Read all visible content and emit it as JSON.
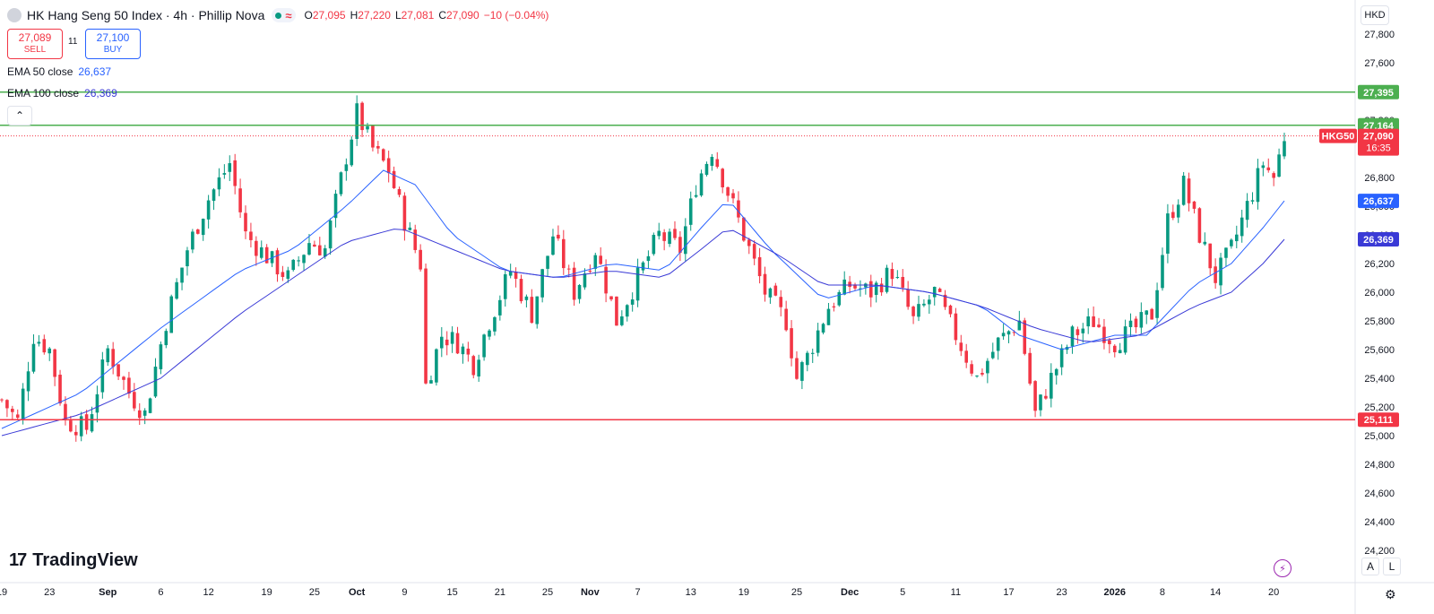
{
  "header": {
    "title": "HK Hang Seng 50 Index · 4h · Phillip Nova",
    "ohlc": {
      "o": "27,095",
      "h": "27,220",
      "l": "27,081",
      "c": "27,090",
      "change": "−10 (−0.04%)"
    }
  },
  "trade": {
    "sell_price": "27,089",
    "sell_label": "SELL",
    "spread": "11",
    "buy_price": "27,100",
    "buy_label": "BUY"
  },
  "indicators": [
    {
      "name": "EMA 50 close",
      "value": "26,637",
      "color": "#2962ff"
    },
    {
      "name": "EMA 100 close",
      "value": "26,369",
      "color": "#3a3ad6"
    }
  ],
  "currency": "HKD",
  "brand": "TradingView",
  "scale_buttons": [
    "A",
    "L"
  ],
  "chart_data": {
    "type": "candlestick",
    "symbol": "HKG50",
    "ylim": [
      24200,
      27950
    ],
    "y_ticks": [
      24200,
      24400,
      24600,
      24800,
      25000,
      25200,
      25400,
      25600,
      25800,
      26000,
      26200,
      26400,
      26600,
      26800,
      27000,
      27200,
      27400,
      27600,
      27800
    ],
    "x_ticks": [
      "19",
      "23",
      "Sep",
      "6",
      "12",
      "19",
      "25",
      "Oct",
      "9",
      "15",
      "21",
      "25",
      "Nov",
      "7",
      "13",
      "19",
      "25",
      "Dec",
      "5",
      "11",
      "17",
      "23",
      "2026",
      "8",
      "14",
      "20"
    ],
    "price_path": [
      [
        0,
        25250
      ],
      [
        3,
        25100
      ],
      [
        6,
        25700
      ],
      [
        9,
        25600
      ],
      [
        12,
        25100
      ],
      [
        16,
        25050
      ],
      [
        20,
        25600
      ],
      [
        24,
        25300
      ],
      [
        27,
        25150
      ],
      [
        31,
        25800
      ],
      [
        35,
        26300
      ],
      [
        39,
        26650
      ],
      [
        43,
        26900
      ],
      [
        46,
        26400
      ],
      [
        50,
        26250
      ],
      [
        54,
        26100
      ],
      [
        58,
        26350
      ],
      [
        61,
        26300
      ],
      [
        65,
        26950
      ],
      [
        67,
        27250
      ],
      [
        70,
        27000
      ],
      [
        73,
        26850
      ],
      [
        76,
        26500
      ],
      [
        79,
        26200
      ],
      [
        80,
        25350
      ],
      [
        83,
        25700
      ],
      [
        86,
        25650
      ],
      [
        89,
        25500
      ],
      [
        92,
        25800
      ],
      [
        96,
        26150
      ],
      [
        100,
        25850
      ],
      [
        104,
        26400
      ],
      [
        108,
        26000
      ],
      [
        112,
        26300
      ],
      [
        116,
        25800
      ],
      [
        120,
        26100
      ],
      [
        124,
        26400
      ],
      [
        128,
        26300
      ],
      [
        131,
        26750
      ],
      [
        134,
        27000
      ],
      [
        136,
        26800
      ],
      [
        140,
        26400
      ],
      [
        144,
        26000
      ],
      [
        148,
        25800
      ],
      [
        150,
        25400
      ],
      [
        152,
        25550
      ],
      [
        156,
        25900
      ],
      [
        160,
        26050
      ],
      [
        164,
        26000
      ],
      [
        168,
        26150
      ],
      [
        172,
        25800
      ],
      [
        176,
        26000
      ],
      [
        180,
        25700
      ],
      [
        184,
        25400
      ],
      [
        188,
        25650
      ],
      [
        192,
        25800
      ],
      [
        195,
        25150
      ],
      [
        198,
        25400
      ],
      [
        202,
        25700
      ],
      [
        206,
        25800
      ],
      [
        210,
        25650
      ],
      [
        214,
        25750
      ],
      [
        217,
        25850
      ],
      [
        220,
        26500
      ],
      [
        223,
        26750
      ],
      [
        226,
        26400
      ],
      [
        229,
        26100
      ],
      [
        232,
        26300
      ],
      [
        235,
        26600
      ],
      [
        238,
        26900
      ],
      [
        240,
        26800
      ],
      [
        242,
        27090
      ]
    ],
    "ema50_path": [
      [
        0,
        25050
      ],
      [
        15,
        25300
      ],
      [
        30,
        25750
      ],
      [
        45,
        26150
      ],
      [
        55,
        26300
      ],
      [
        65,
        26600
      ],
      [
        72,
        26850
      ],
      [
        78,
        26750
      ],
      [
        85,
        26400
      ],
      [
        95,
        26150
      ],
      [
        105,
        26100
      ],
      [
        115,
        26200
      ],
      [
        125,
        26150
      ],
      [
        132,
        26450
      ],
      [
        137,
        26650
      ],
      [
        145,
        26300
      ],
      [
        155,
        25950
      ],
      [
        165,
        26050
      ],
      [
        175,
        26000
      ],
      [
        185,
        25900
      ],
      [
        192,
        25700
      ],
      [
        200,
        25600
      ],
      [
        210,
        25700
      ],
      [
        216,
        25700
      ],
      [
        225,
        26050
      ],
      [
        232,
        26200
      ],
      [
        238,
        26450
      ],
      [
        242,
        26637
      ]
    ],
    "ema100_path": [
      [
        0,
        25000
      ],
      [
        15,
        25150
      ],
      [
        30,
        25400
      ],
      [
        45,
        25850
      ],
      [
        55,
        26100
      ],
      [
        65,
        26350
      ],
      [
        75,
        26450
      ],
      [
        85,
        26300
      ],
      [
        95,
        26150
      ],
      [
        105,
        26100
      ],
      [
        115,
        26150
      ],
      [
        125,
        26100
      ],
      [
        132,
        26300
      ],
      [
        137,
        26450
      ],
      [
        147,
        26250
      ],
      [
        155,
        26050
      ],
      [
        165,
        26050
      ],
      [
        175,
        26000
      ],
      [
        185,
        25900
      ],
      [
        195,
        25750
      ],
      [
        205,
        25650
      ],
      [
        215,
        25700
      ],
      [
        225,
        25900
      ],
      [
        232,
        26000
      ],
      [
        238,
        26200
      ],
      [
        242,
        26369
      ]
    ],
    "horizontal_lines": [
      {
        "value": 27395,
        "label": "27,395",
        "color": "#4caf50"
      },
      {
        "value": 27164,
        "label": "27,164",
        "color": "#4caf50"
      },
      {
        "value": 25111,
        "label": "25,111",
        "color": "#f23645"
      }
    ],
    "last_price": {
      "value": 27090,
      "label": "27,090",
      "countdown": "16:35",
      "color": "#f23645"
    },
    "ema_labels": [
      {
        "value": 26637,
        "label": "26,637",
        "color": "#2962ff"
      },
      {
        "value": 26369,
        "label": "26,369",
        "color": "#3a3ad6"
      }
    ]
  }
}
